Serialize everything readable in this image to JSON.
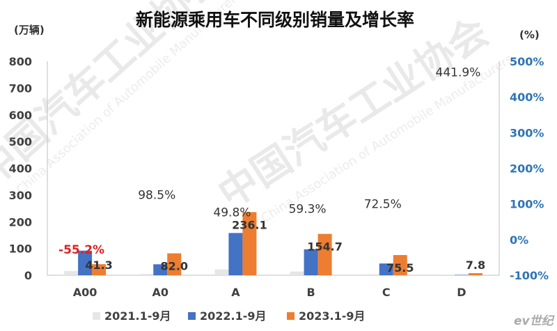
{
  "chart_data": {
    "type": "bar",
    "title": "新能源乘用车不同级别销量及增长率",
    "left_unit": "(万辆)",
    "right_unit": "(%)",
    "categories": [
      "A00",
      "A0",
      "A",
      "B",
      "C",
      "D"
    ],
    "series": [
      {
        "name": "2021.1-9月",
        "color": "#e6e6e6",
        "values": [
          16,
          5,
          22,
          14,
          4,
          0.5
        ]
      },
      {
        "name": "2022.1-9月",
        "color": "#4472c4",
        "values": [
          92,
          41,
          158,
          97,
          44,
          1.5
        ]
      },
      {
        "name": "2023.1-9月",
        "color": "#ed7d31",
        "values": [
          41.3,
          82.0,
          236.1,
          154.7,
          75.5,
          7.8
        ]
      }
    ],
    "data_labels": [
      "41.3",
      "82.0",
      "236.1",
      "154.7",
      "75.5",
      "7.8"
    ],
    "growth_rates": [
      -55.2,
      98.5,
      49.8,
      59.3,
      72.5,
      441.9
    ],
    "growth_labels": [
      "-55.2%",
      "98.5%",
      "49.8%",
      "59.3%",
      "72.5%",
      "441.9%"
    ],
    "growth_colors": [
      "#e02020",
      "#333333",
      "#333333",
      "#333333",
      "#333333",
      "#333333"
    ],
    "ylim": [
      0,
      800
    ],
    "y2lim": [
      -100,
      500
    ],
    "yticks": [
      "0",
      "100",
      "200",
      "300",
      "400",
      "500",
      "600",
      "700",
      "800"
    ],
    "y2ticks": [
      "-100%",
      "0%",
      "100%",
      "200%",
      "300%",
      "400%",
      "500%"
    ],
    "y2_color": "#2e75b6",
    "grid": false,
    "legend_position": "bottom"
  },
  "watermark": {
    "text": "中国汽车工业协会",
    "english": "China Association of Automobile Manufacturers"
  },
  "brand": "ev世纪"
}
